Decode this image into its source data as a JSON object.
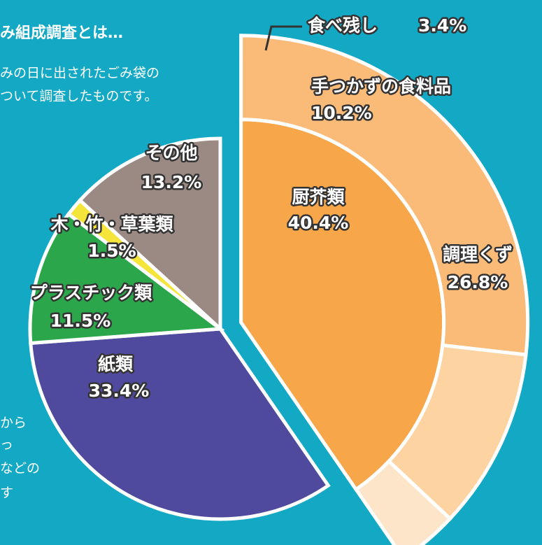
{
  "chart_data": {
    "type": "pie",
    "title": "み組成調査とは…",
    "description": [
      "みの日に出されたごみ袋の",
      "ついて調査したものです。"
    ],
    "footnote": [
      "から",
      "っ",
      "などの",
      "す"
    ],
    "categories": [
      "厨芥類",
      "紙類",
      "プラスチック類",
      "木・竹・草葉類",
      "その他"
    ],
    "values": [
      40.4,
      33.4,
      11.5,
      1.5,
      13.2
    ],
    "value_labels": [
      "40.4%",
      "33.4%",
      "11.5%",
      "1.5%",
      "13.2%"
    ],
    "colors": [
      "#f7a64a",
      "#4f4a9d",
      "#2ca64b",
      "#f5e43a",
      "#9a8a83"
    ],
    "breakdown": {
      "categories": [
        "調理くず",
        "手つかずの食料品",
        "食べ残し"
      ],
      "values": [
        26.8,
        10.2,
        3.4
      ],
      "value_labels": [
        "26.8%",
        "10.2%",
        "3.4%"
      ],
      "colors": [
        "#fbbb78",
        "#fdd3a2",
        "#fde5ca"
      ]
    }
  }
}
